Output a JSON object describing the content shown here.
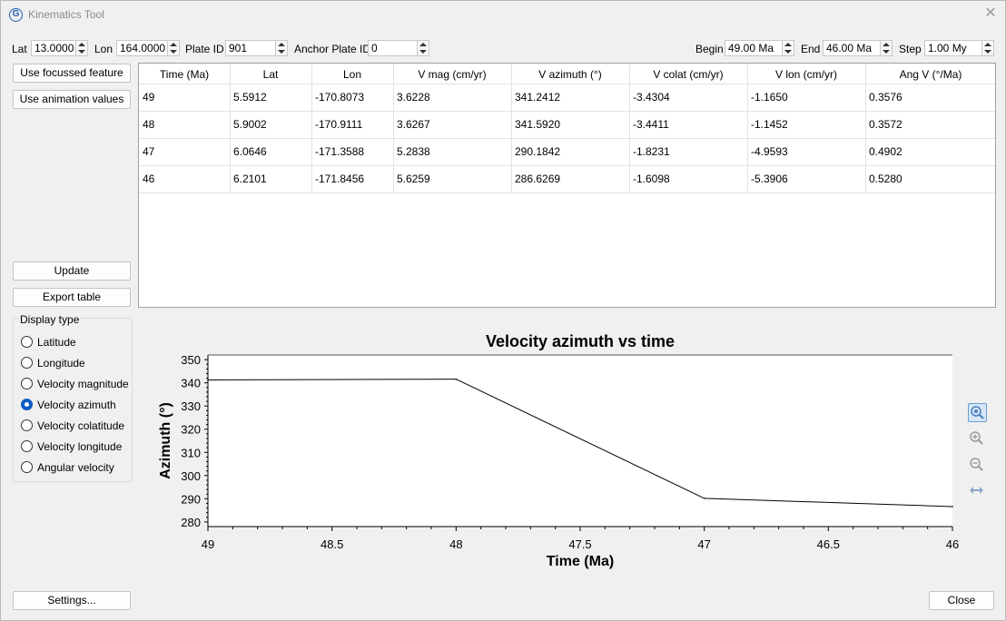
{
  "window": {
    "title": "Kinematics Tool",
    "icon": "G"
  },
  "toolbar": {
    "lat_label": "Lat",
    "lat_value": "13.0000",
    "lon_label": "Lon",
    "lon_value": "164.0000",
    "plate_id_label": "Plate ID",
    "plate_id_value": "901",
    "anchor_label": "Anchor Plate ID",
    "anchor_value": "0",
    "begin_label": "Begin",
    "begin_value": "49.00 Ma",
    "end_label": "End",
    "end_value": "46.00 Ma",
    "step_label": "Step",
    "step_value": "1.00 My"
  },
  "left": {
    "use_focussed": "Use focussed feature",
    "use_animation": "Use animation values",
    "update": "Update",
    "export": "Export table",
    "settings": "Settings..."
  },
  "display_type": {
    "title": "Display type",
    "options": [
      "Latitude",
      "Longitude",
      "Velocity magnitude",
      "Velocity azimuth",
      "Velocity colatitude",
      "Velocity longitude",
      "Angular velocity"
    ],
    "selected": "Velocity azimuth"
  },
  "table": {
    "headers": [
      "Time (Ma)",
      "Lat",
      "Lon",
      "V mag (cm/yr)",
      "V azimuth (°)",
      "V colat (cm/yr)",
      "V lon (cm/yr)",
      "Ang V (°/Ma)"
    ],
    "rows": [
      [
        "49",
        "5.5912",
        "-170.8073",
        "3.6228",
        "341.2412",
        "-3.4304",
        "-1.1650",
        "0.3576"
      ],
      [
        "48",
        "5.9002",
        "-170.9111",
        "3.6267",
        "341.5920",
        "-3.4411",
        "-1.1452",
        "0.3572"
      ],
      [
        "47",
        "6.0646",
        "-171.3588",
        "5.2838",
        "290.1842",
        "-1.8231",
        "-4.9593",
        "0.4902"
      ],
      [
        "46",
        "6.2101",
        "-171.8456",
        "5.6259",
        "286.6269",
        "-1.6098",
        "-5.3906",
        "0.5280"
      ]
    ]
  },
  "chart_data": {
    "type": "line",
    "title": "Velocity azimuth vs time",
    "xlabel": "Time (Ma)",
    "ylabel": "Azimuth (°)",
    "x": [
      49,
      48,
      47,
      46
    ],
    "y": [
      341.2412,
      341.592,
      290.1842,
      286.6269
    ],
    "xlim": [
      49,
      46
    ],
    "ylim": [
      278,
      352
    ],
    "x_ticks": [
      "49",
      "48.5",
      "48",
      "47.5",
      "47",
      "46.5",
      "46"
    ],
    "y_ticks": [
      "350",
      "340",
      "330",
      "320",
      "310",
      "300",
      "290",
      "280"
    ],
    "x_reversed": true,
    "grid": false
  },
  "chart_tools": [
    "zoom-fit-icon",
    "zoom-in-icon",
    "zoom-out-icon",
    "pan-icon"
  ],
  "footer": {
    "close": "Close"
  },
  "colors": {
    "accent": "#0b5cc4",
    "line": "#000000"
  }
}
